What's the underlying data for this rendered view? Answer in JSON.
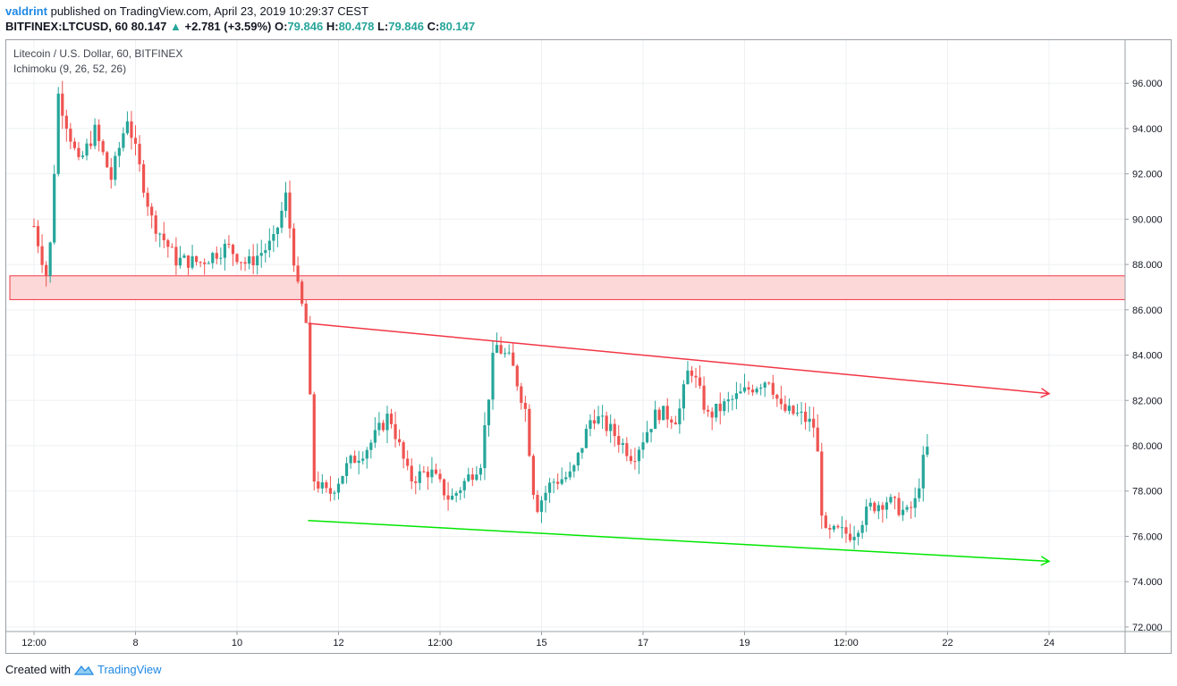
{
  "header": {
    "author": "valdrint",
    "published_text": "published on TradingView.com, April 23, 2019 10:29:37 CEST",
    "symbol": "BITFINEX:LTCUSD, 60",
    "last": "80.147",
    "change": "+2.781 (+3.59%)",
    "o_label": "O:",
    "o": "79.846",
    "h_label": "H:",
    "h": "80.478",
    "l_label": "L:",
    "l": "79.846",
    "c_label": "C:",
    "c": "80.147"
  },
  "legend": {
    "title": "Litecoin / U.S. Dollar, 60, BITFINEX",
    "indicator": "Ichimoku (9, 26, 52, 26)"
  },
  "footer": {
    "created_with": "Created with",
    "brand": "TradingView"
  },
  "colors": {
    "up": "#26a69a",
    "down": "#ef5350",
    "resistance": "#f23645",
    "support": "#00e600",
    "zone_fill": "#fdd8d8"
  },
  "chart_data": {
    "type": "candlestick",
    "title": "Litecoin / U.S. Dollar, 60, BITFINEX",
    "y_ticks": [
      "72.000",
      "74.000",
      "76.000",
      "78.000",
      "80.000",
      "82.000",
      "84.000",
      "86.000",
      "88.000",
      "90.000",
      "92.000",
      "94.000",
      "96.000"
    ],
    "ylim": [
      71.8,
      97.9
    ],
    "x_ticks": [
      "12:00",
      "8",
      "10",
      "12",
      "12:00",
      "15",
      "17",
      "19",
      "12:00",
      "22",
      "24"
    ],
    "x_tick_pos": [
      0,
      0.5,
      1,
      1.5,
      2,
      2.5,
      3,
      3.5,
      4,
      4.5,
      5
    ],
    "key_prices": [
      {
        "x": 0,
        "y": 89.7
      },
      {
        "x": 0.07,
        "y": 87.2
      },
      {
        "x": 0.12,
        "y": 95.5
      },
      {
        "x": 0.22,
        "y": 92.4
      },
      {
        "x": 0.3,
        "y": 93.9
      },
      {
        "x": 0.38,
        "y": 91.8
      },
      {
        "x": 0.46,
        "y": 94.5
      },
      {
        "x": 0.58,
        "y": 90.0
      },
      {
        "x": 0.7,
        "y": 88.2
      },
      {
        "x": 0.82,
        "y": 88.1
      },
      {
        "x": 0.95,
        "y": 88.8
      },
      {
        "x": 1.05,
        "y": 88.0
      },
      {
        "x": 1.18,
        "y": 89.0
      },
      {
        "x": 1.24,
        "y": 91.0
      },
      {
        "x": 1.3,
        "y": 86.9
      },
      {
        "x": 1.34,
        "y": 85.4
      },
      {
        "x": 1.38,
        "y": 78.5
      },
      {
        "x": 1.45,
        "y": 77.8
      },
      {
        "x": 1.55,
        "y": 79.2
      },
      {
        "x": 1.65,
        "y": 80.0
      },
      {
        "x": 1.75,
        "y": 81.4
      },
      {
        "x": 1.85,
        "y": 78.5
      },
      {
        "x": 1.95,
        "y": 78.9
      },
      {
        "x": 2.05,
        "y": 77.6
      },
      {
        "x": 2.2,
        "y": 79.3
      },
      {
        "x": 2.27,
        "y": 84.5
      },
      {
        "x": 2.35,
        "y": 83.7
      },
      {
        "x": 2.42,
        "y": 81.6
      },
      {
        "x": 2.47,
        "y": 77.2
      },
      {
        "x": 2.55,
        "y": 78.4
      },
      {
        "x": 2.65,
        "y": 78.7
      },
      {
        "x": 2.75,
        "y": 81.4
      },
      {
        "x": 2.85,
        "y": 80.6
      },
      {
        "x": 2.95,
        "y": 79.5
      },
      {
        "x": 3.07,
        "y": 81.5
      },
      {
        "x": 3.17,
        "y": 81.2
      },
      {
        "x": 3.23,
        "y": 83.6
      },
      {
        "x": 3.32,
        "y": 81.3
      },
      {
        "x": 3.42,
        "y": 81.9
      },
      {
        "x": 3.52,
        "y": 82.5
      },
      {
        "x": 3.62,
        "y": 83.0
      },
      {
        "x": 3.68,
        "y": 81.6
      },
      {
        "x": 3.78,
        "y": 81.3
      },
      {
        "x": 3.85,
        "y": 80.8
      },
      {
        "x": 3.89,
        "y": 76.0
      },
      {
        "x": 3.95,
        "y": 76.2
      },
      {
        "x": 4.03,
        "y": 76.1
      },
      {
        "x": 4.12,
        "y": 77.3
      },
      {
        "x": 4.2,
        "y": 77.6
      },
      {
        "x": 4.3,
        "y": 77.0
      },
      {
        "x": 4.34,
        "y": 77.5
      },
      {
        "x": 4.38,
        "y": 79.3
      },
      {
        "x": 4.41,
        "y": 80.1
      }
    ],
    "resistance_zone": [
      86.45,
      87.5
    ],
    "trendlines": [
      {
        "name": "resistance",
        "from": {
          "x": 1.35,
          "y": 85.4
        },
        "to": {
          "x": 5.0,
          "y": 82.3
        }
      },
      {
        "name": "support",
        "from": {
          "x": 1.35,
          "y": 76.7
        },
        "to": {
          "x": 5.0,
          "y": 74.9
        }
      }
    ]
  }
}
